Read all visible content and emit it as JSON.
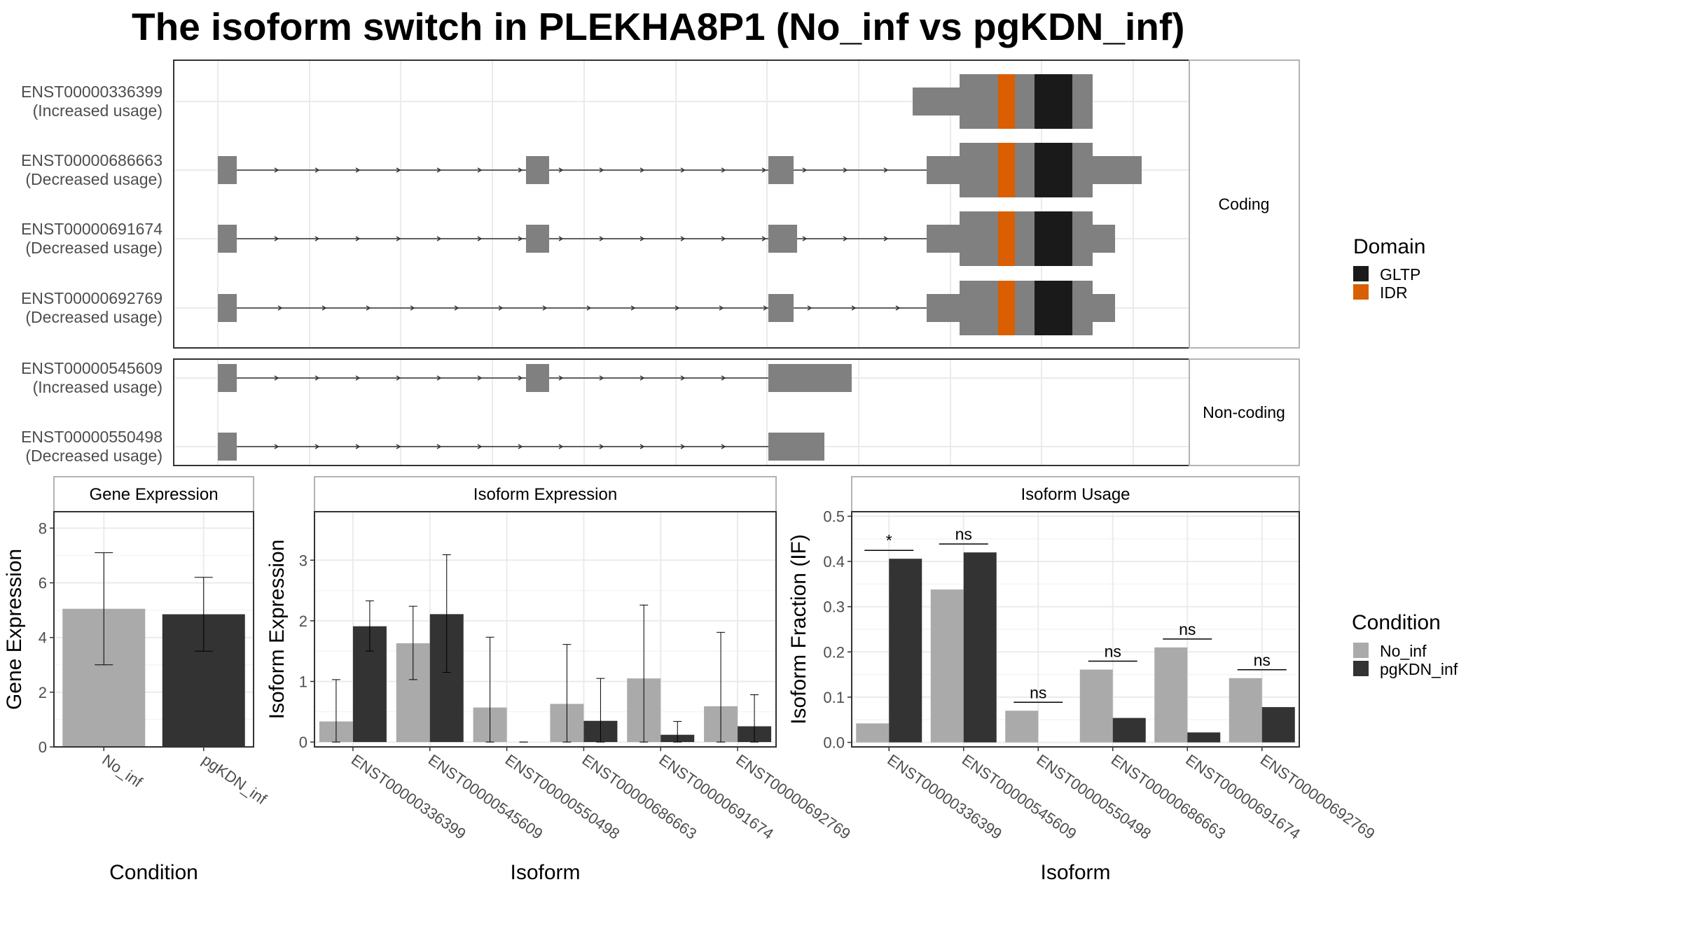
{
  "title": "The isoform switch in PLEKHA8P1 (No_inf vs pgKDN_inf)",
  "colors": {
    "intron": "#333333",
    "exon": "#808080",
    "GLTP": "#1a1a1a",
    "IDR": "#d95f02",
    "No_inf": "#aaaaaa",
    "pgKDN_inf": "#333333",
    "panel_border": "#333333",
    "strip_border": "#b3b3b3",
    "grid": "#ebebeb"
  },
  "structure": {
    "coding_strip": "Coding",
    "noncoding_strip": "Non-coding",
    "legend_title": "Domain",
    "legend_items": [
      {
        "key": "GLTP",
        "label": "GLTP"
      },
      {
        "key": "IDR",
        "label": "IDR"
      }
    ],
    "coding_rows": [
      {
        "id": "ENST00000336399",
        "usage": "(Increased usage)"
      },
      {
        "id": "ENST00000686663",
        "usage": "(Decreased usage)"
      },
      {
        "id": "ENST00000691674",
        "usage": "(Decreased usage)"
      },
      {
        "id": "ENST00000692769",
        "usage": "(Decreased usage)"
      }
    ],
    "noncoding_rows": [
      {
        "id": "ENST00000545609",
        "usage": "(Increased usage)"
      },
      {
        "id": "ENST00000550498",
        "usage": "(Decreased usage)"
      }
    ]
  },
  "chart_data": [
    {
      "type": "bar",
      "strip": "Gene Expression",
      "xlabel": "Condition",
      "ylabel": "Gene Expression",
      "categories": [
        "No_inf",
        "pgKDN_inf"
      ],
      "values": [
        5.05,
        4.85
      ],
      "error_low": [
        3.0,
        3.5
      ],
      "error_high": [
        7.1,
        6.2
      ],
      "ylim": [
        0,
        8.6
      ],
      "yticks": [
        0,
        2,
        4,
        6,
        8
      ]
    },
    {
      "type": "bar",
      "strip": "Isoform Expression",
      "xlabel": "Isoform",
      "ylabel": "Isoform Expression",
      "categories": [
        "ENST00000336399",
        "ENST00000545609",
        "ENST00000550498",
        "ENST00000686663",
        "ENST00000691674",
        "ENST00000692769"
      ],
      "series": [
        {
          "name": "No_inf",
          "values": [
            0.34,
            1.63,
            0.57,
            0.63,
            1.05,
            0.59
          ],
          "error_low": [
            0,
            1.03,
            0,
            0,
            0,
            0
          ],
          "error_high": [
            1.03,
            2.24,
            1.73,
            1.61,
            2.26,
            1.81
          ]
        },
        {
          "name": "pgKDN_inf",
          "values": [
            1.91,
            2.11,
            0.0,
            0.35,
            0.12,
            0.26
          ],
          "error_low": [
            1.5,
            1.15,
            0,
            0,
            0,
            0
          ],
          "error_high": [
            2.33,
            3.09,
            0,
            1.05,
            0.34,
            0.78
          ]
        }
      ],
      "ylim": [
        -0.08,
        3.8
      ],
      "yticks": [
        0,
        1,
        2,
        3
      ]
    },
    {
      "type": "bar",
      "strip": "Isoform Usage",
      "xlabel": "Isoform",
      "ylabel": "Isoform Fraction (IF)",
      "categories": [
        "ENST00000336399",
        "ENST00000545609",
        "ENST00000550498",
        "ENST00000686663",
        "ENST00000691674",
        "ENST00000692769"
      ],
      "series": [
        {
          "name": "No_inf",
          "values": [
            0.042,
            0.338,
            0.07,
            0.161,
            0.21,
            0.142
          ]
        },
        {
          "name": "pgKDN_inf",
          "values": [
            0.406,
            0.42,
            0.0,
            0.054,
            0.022,
            0.078
          ]
        }
      ],
      "significance": [
        "*",
        "ns",
        "ns",
        "ns",
        "ns",
        "ns"
      ],
      "ylim": [
        -0.01,
        0.51
      ],
      "yticks": [
        0.0,
        0.1,
        0.2,
        0.3,
        0.4,
        0.5
      ],
      "ytick_labels": [
        "0.0",
        "0.1",
        "0.2",
        "0.3",
        "0.4",
        "0.5"
      ]
    }
  ],
  "condition_legend": {
    "title": "Condition",
    "items": [
      {
        "key": "No_inf",
        "label": "No_inf"
      },
      {
        "key": "pgKDN_inf",
        "label": "pgKDN_inf"
      }
    ]
  }
}
